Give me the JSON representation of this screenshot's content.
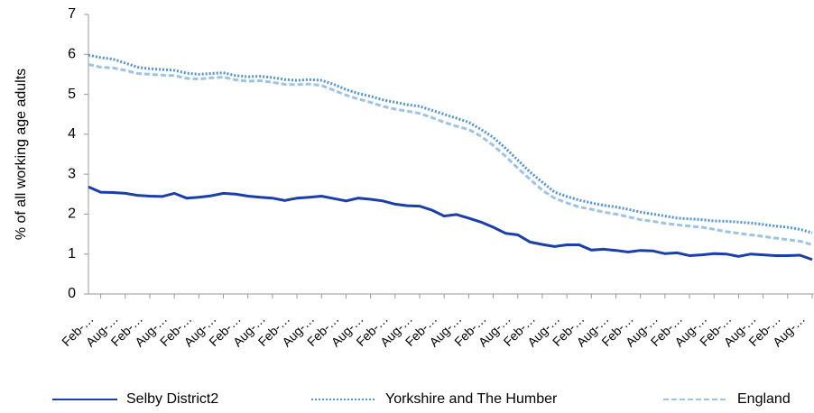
{
  "chart_data": {
    "type": "line",
    "y_label": "% of all working age adults",
    "categories": [
      "Feb-…",
      null,
      "Aug-…",
      null,
      "Feb-…",
      null,
      "Aug-…",
      null,
      "Feb-…",
      null,
      "Aug-…",
      null,
      "Feb-…",
      null,
      "Aug-…",
      null,
      "Feb-…",
      null,
      "Aug-…",
      null,
      "Feb-…",
      null,
      "Aug-…",
      null,
      "Feb-…",
      null,
      "Aug-…",
      null,
      "Feb-…",
      null,
      "Aug-…",
      null,
      "Feb-…",
      null,
      "Aug-…",
      null,
      "Feb-…",
      null,
      "Aug-…",
      null,
      "Feb-…",
      null,
      "Aug-…",
      null,
      "Feb-…",
      null,
      "Aug-…",
      null,
      "Feb-…",
      null,
      "Aug-…",
      null,
      "Feb-…",
      null,
      "Aug-…",
      null,
      "Feb-…",
      null,
      "Aug-…",
      null
    ],
    "series": [
      {
        "name": "Selby District2",
        "color": "#1a3faa",
        "line_style": "solid",
        "values": [
          2.68,
          2.55,
          2.54,
          2.52,
          2.47,
          2.45,
          2.44,
          2.52,
          2.4,
          2.42,
          2.46,
          2.52,
          2.5,
          2.45,
          2.42,
          2.4,
          2.34,
          2.4,
          2.42,
          2.45,
          2.39,
          2.33,
          2.4,
          2.37,
          2.33,
          2.25,
          2.21,
          2.2,
          2.1,
          1.95,
          1.99,
          1.9,
          1.8,
          1.67,
          1.52,
          1.48,
          1.3,
          1.24,
          1.19,
          1.23,
          1.23,
          1.1,
          1.12,
          1.09,
          1.05,
          1.09,
          1.08,
          1.01,
          1.03,
          0.96,
          0.98,
          1.01,
          1.0,
          0.94,
          1.0,
          0.98,
          0.96,
          0.96,
          0.97,
          0.86
        ]
      },
      {
        "name": "Yorkshire and The Humber",
        "color": "#4f94e0",
        "line_style": "dotted",
        "values": [
          5.98,
          5.92,
          5.88,
          5.78,
          5.68,
          5.64,
          5.62,
          5.6,
          5.53,
          5.5,
          5.52,
          5.54,
          5.47,
          5.44,
          5.45,
          5.42,
          5.37,
          5.35,
          5.37,
          5.35,
          5.25,
          5.12,
          5.02,
          4.95,
          4.86,
          4.8,
          4.74,
          4.7,
          4.6,
          4.5,
          4.4,
          4.3,
          4.12,
          3.92,
          3.65,
          3.35,
          3.05,
          2.8,
          2.55,
          2.44,
          2.35,
          2.28,
          2.22,
          2.18,
          2.12,
          2.05,
          2.0,
          1.95,
          1.9,
          1.88,
          1.86,
          1.83,
          1.82,
          1.8,
          1.78,
          1.74,
          1.7,
          1.67,
          1.62,
          1.53
        ]
      },
      {
        "name": "England",
        "color": "#9dc3e6",
        "line_style": "dashed",
        "values": [
          5.75,
          5.68,
          5.66,
          5.6,
          5.52,
          5.5,
          5.48,
          5.47,
          5.4,
          5.38,
          5.41,
          5.43,
          5.36,
          5.33,
          5.34,
          5.3,
          5.25,
          5.24,
          5.26,
          5.22,
          5.1,
          4.98,
          4.88,
          4.8,
          4.7,
          4.63,
          4.58,
          4.52,
          4.42,
          4.3,
          4.2,
          4.12,
          3.95,
          3.72,
          3.45,
          3.15,
          2.87,
          2.6,
          2.4,
          2.28,
          2.18,
          2.12,
          2.05,
          2.0,
          1.93,
          1.86,
          1.82,
          1.77,
          1.73,
          1.7,
          1.67,
          1.62,
          1.56,
          1.52,
          1.48,
          1.44,
          1.4,
          1.36,
          1.32,
          1.23
        ]
      }
    ],
    "ylim": [
      0,
      7
    ],
    "yticks": [
      0,
      1,
      2,
      3,
      4,
      5,
      6,
      7
    ],
    "grid": false,
    "legend": "bottom"
  }
}
